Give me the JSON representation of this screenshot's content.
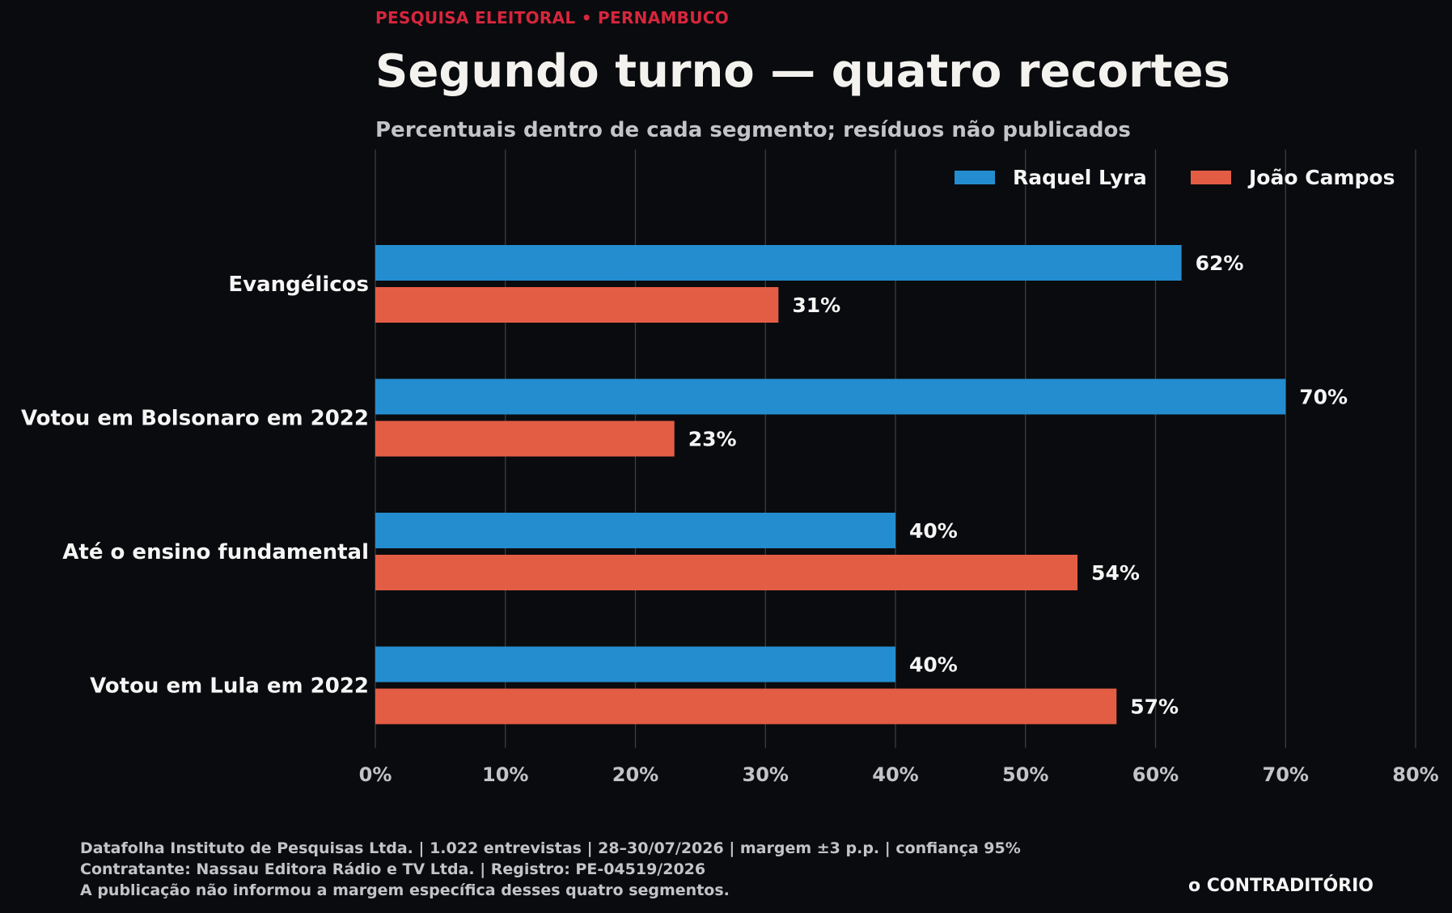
{
  "header": {
    "kicker": "PESQUISA ELEITORAL • PERNAMBUCO",
    "title": "Segundo turno — quatro recortes",
    "subtitle": "Percentuais dentro de cada segmento; resíduos não publicados"
  },
  "chart_data": {
    "type": "bar",
    "orientation": "horizontal",
    "categories": [
      "Evangélicos",
      "Votou em Bolsonaro em 2022",
      "Até o ensino fundamental",
      "Votou em Lula em 2022"
    ],
    "series": [
      {
        "name": "Raquel Lyra",
        "color": "#248dcf",
        "values": [
          62,
          70,
          40,
          40
        ]
      },
      {
        "name": "João Campos",
        "color": "#e35d45",
        "values": [
          31,
          23,
          54,
          57
        ]
      }
    ],
    "value_suffix": "%",
    "xlim": [
      0,
      80
    ],
    "xticks": [
      0,
      10,
      20,
      30,
      40,
      50,
      60,
      70,
      80
    ],
    "xtick_labels": [
      "0%",
      "10%",
      "20%",
      "30%",
      "40%",
      "50%",
      "60%",
      "70%",
      "80%"
    ],
    "grid": "vertical",
    "legend_position": "top-right"
  },
  "footer": {
    "lines": [
      "Datafolha Instituto de Pesquisas Ltda. | 1.022 entrevistas | 28–30/07/2026 | margem ±3 p.p. | confiança 95%",
      "Contratante: Nassau Editora Rádio e TV Ltda. | Registro: PE-04519/2026",
      "A publicação não informou a margem específica desses quatro segmentos."
    ],
    "brand": "o CONTRADITÓRIO"
  },
  "colors": {
    "background": "#0a0b0e",
    "gridline": "#3a3d44",
    "kicker": "#d7263d"
  }
}
